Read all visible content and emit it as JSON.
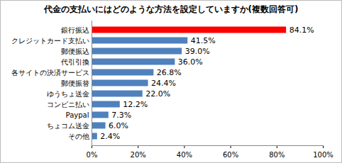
{
  "chart_data": {
    "type": "bar",
    "orientation": "horizontal",
    "title": "代金の支払いにはどのような方法を設定していますか(複数回答可)",
    "categories": [
      "銀行振込",
      "クレジットカード支払い",
      "郵便振込",
      "代引引換",
      "各サイトの決済サービス",
      "郵便振替",
      "ゆうちょ送金",
      "コンビニ払い",
      "Paypal",
      "ちょコム送金",
      "その他"
    ],
    "values": [
      84.1,
      41.5,
      39.0,
      36.0,
      26.8,
      24.4,
      22.0,
      12.2,
      7.3,
      6.0,
      2.4
    ],
    "value_labels": [
      "84.1%",
      "41.5%",
      "39.0%",
      "36.0%",
      "26.8%",
      "24.4%",
      "22.0%",
      "12.2%",
      "7.3%",
      "6.0%",
      "2.4%"
    ],
    "colors": [
      "#ff0000",
      "#4f81bd",
      "#4f81bd",
      "#4f81bd",
      "#4f81bd",
      "#4f81bd",
      "#4f81bd",
      "#4f81bd",
      "#4f81bd",
      "#4f81bd",
      "#4f81bd"
    ],
    "data_labels": true,
    "grid": false,
    "xlim": [
      0,
      100
    ],
    "xticks": [
      {
        "value": 0,
        "label": "0%"
      },
      {
        "value": 20,
        "label": "20%"
      },
      {
        "value": 40,
        "label": "40%"
      },
      {
        "value": 60,
        "label": "60%"
      },
      {
        "value": 80,
        "label": "80%"
      },
      {
        "value": 100,
        "label": "100%"
      }
    ]
  }
}
